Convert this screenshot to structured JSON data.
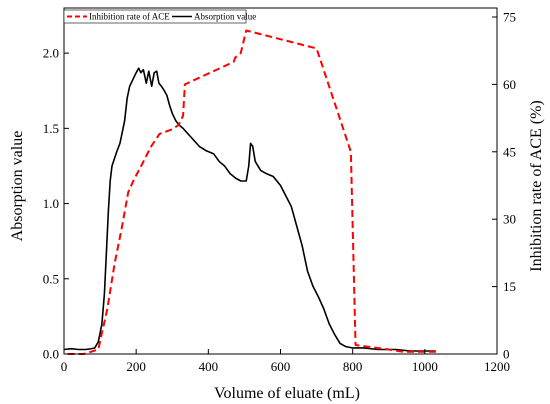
{
  "chart_data": {
    "type": "line",
    "title": "",
    "xlabel": "Volume of eluate (mL)",
    "ylabel_left": "Absorption value",
    "ylabel_right": "Inhibition rate of ACE (%)",
    "xlim": [
      0,
      1200
    ],
    "ylim_left": [
      0,
      2.3
    ],
    "ylim_right": [
      0,
      77
    ],
    "x_ticks": [
      0,
      200,
      400,
      600,
      800,
      1000,
      1200
    ],
    "y_left_ticks": [
      0.0,
      0.5,
      1.0,
      1.5,
      2.0
    ],
    "y_right_ticks": [
      0,
      15,
      30,
      45,
      60,
      75
    ],
    "grid": false,
    "legend_position": "top-left",
    "legend": [
      "Inhibition rate of ACE",
      "Absorption value"
    ],
    "series": [
      {
        "name": "Absorption value",
        "axis": "left",
        "color": "#000000",
        "style": "solid",
        "points": [
          [
            0,
            0.03
          ],
          [
            20,
            0.035
          ],
          [
            40,
            0.03
          ],
          [
            60,
            0.03
          ],
          [
            75,
            0.035
          ],
          [
            85,
            0.04
          ],
          [
            95,
            0.08
          ],
          [
            105,
            0.2
          ],
          [
            112,
            0.4
          ],
          [
            118,
            0.7
          ],
          [
            123,
            0.95
          ],
          [
            128,
            1.15
          ],
          [
            133,
            1.25
          ],
          [
            140,
            1.3
          ],
          [
            147,
            1.35
          ],
          [
            155,
            1.4
          ],
          [
            162,
            1.48
          ],
          [
            168,
            1.55
          ],
          [
            175,
            1.7
          ],
          [
            182,
            1.78
          ],
          [
            190,
            1.82
          ],
          [
            200,
            1.87
          ],
          [
            207,
            1.9
          ],
          [
            213,
            1.87
          ],
          [
            220,
            1.89
          ],
          [
            228,
            1.8
          ],
          [
            235,
            1.88
          ],
          [
            243,
            1.78
          ],
          [
            250,
            1.87
          ],
          [
            257,
            1.88
          ],
          [
            263,
            1.8
          ],
          [
            270,
            1.78
          ],
          [
            278,
            1.75
          ],
          [
            285,
            1.72
          ],
          [
            293,
            1.65
          ],
          [
            300,
            1.6
          ],
          [
            310,
            1.55
          ],
          [
            320,
            1.52
          ],
          [
            330,
            1.5
          ],
          [
            345,
            1.46
          ],
          [
            360,
            1.42
          ],
          [
            375,
            1.38
          ],
          [
            395,
            1.35
          ],
          [
            415,
            1.33
          ],
          [
            430,
            1.28
          ],
          [
            445,
            1.25
          ],
          [
            460,
            1.2
          ],
          [
            475,
            1.17
          ],
          [
            490,
            1.15
          ],
          [
            505,
            1.15
          ],
          [
            512,
            1.25
          ],
          [
            517,
            1.4
          ],
          [
            523,
            1.38
          ],
          [
            530,
            1.28
          ],
          [
            545,
            1.22
          ],
          [
            560,
            1.2
          ],
          [
            580,
            1.18
          ],
          [
            600,
            1.12
          ],
          [
            615,
            1.05
          ],
          [
            630,
            0.98
          ],
          [
            645,
            0.85
          ],
          [
            660,
            0.72
          ],
          [
            675,
            0.55
          ],
          [
            690,
            0.45
          ],
          [
            705,
            0.38
          ],
          [
            720,
            0.3
          ],
          [
            735,
            0.2
          ],
          [
            750,
            0.13
          ],
          [
            765,
            0.07
          ],
          [
            780,
            0.05
          ],
          [
            800,
            0.04
          ],
          [
            830,
            0.04
          ],
          [
            870,
            0.03
          ],
          [
            920,
            0.03
          ],
          [
            960,
            0.02
          ],
          [
            1000,
            0.02
          ],
          [
            1030,
            0.02
          ]
        ]
      },
      {
        "name": "Inhibition rate of ACE",
        "axis": "right",
        "color": "#ff0000",
        "style": "dashed",
        "points": [
          [
            10,
            0
          ],
          [
            55,
            0
          ],
          [
            95,
            1
          ],
          [
            120,
            10
          ],
          [
            140,
            20
          ],
          [
            160,
            28
          ],
          [
            178,
            36
          ],
          [
            195,
            39
          ],
          [
            215,
            42
          ],
          [
            240,
            46
          ],
          [
            265,
            49
          ],
          [
            300,
            50
          ],
          [
            318,
            51
          ],
          [
            330,
            53
          ],
          [
            335,
            60
          ],
          [
            470,
            65
          ],
          [
            475,
            66
          ],
          [
            490,
            67
          ],
          [
            505,
            72
          ],
          [
            700,
            68
          ],
          [
            795,
            45
          ],
          [
            808,
            2
          ],
          [
            900,
            1
          ],
          [
            940,
            0.5
          ],
          [
            1040,
            0.5
          ]
        ]
      }
    ]
  }
}
